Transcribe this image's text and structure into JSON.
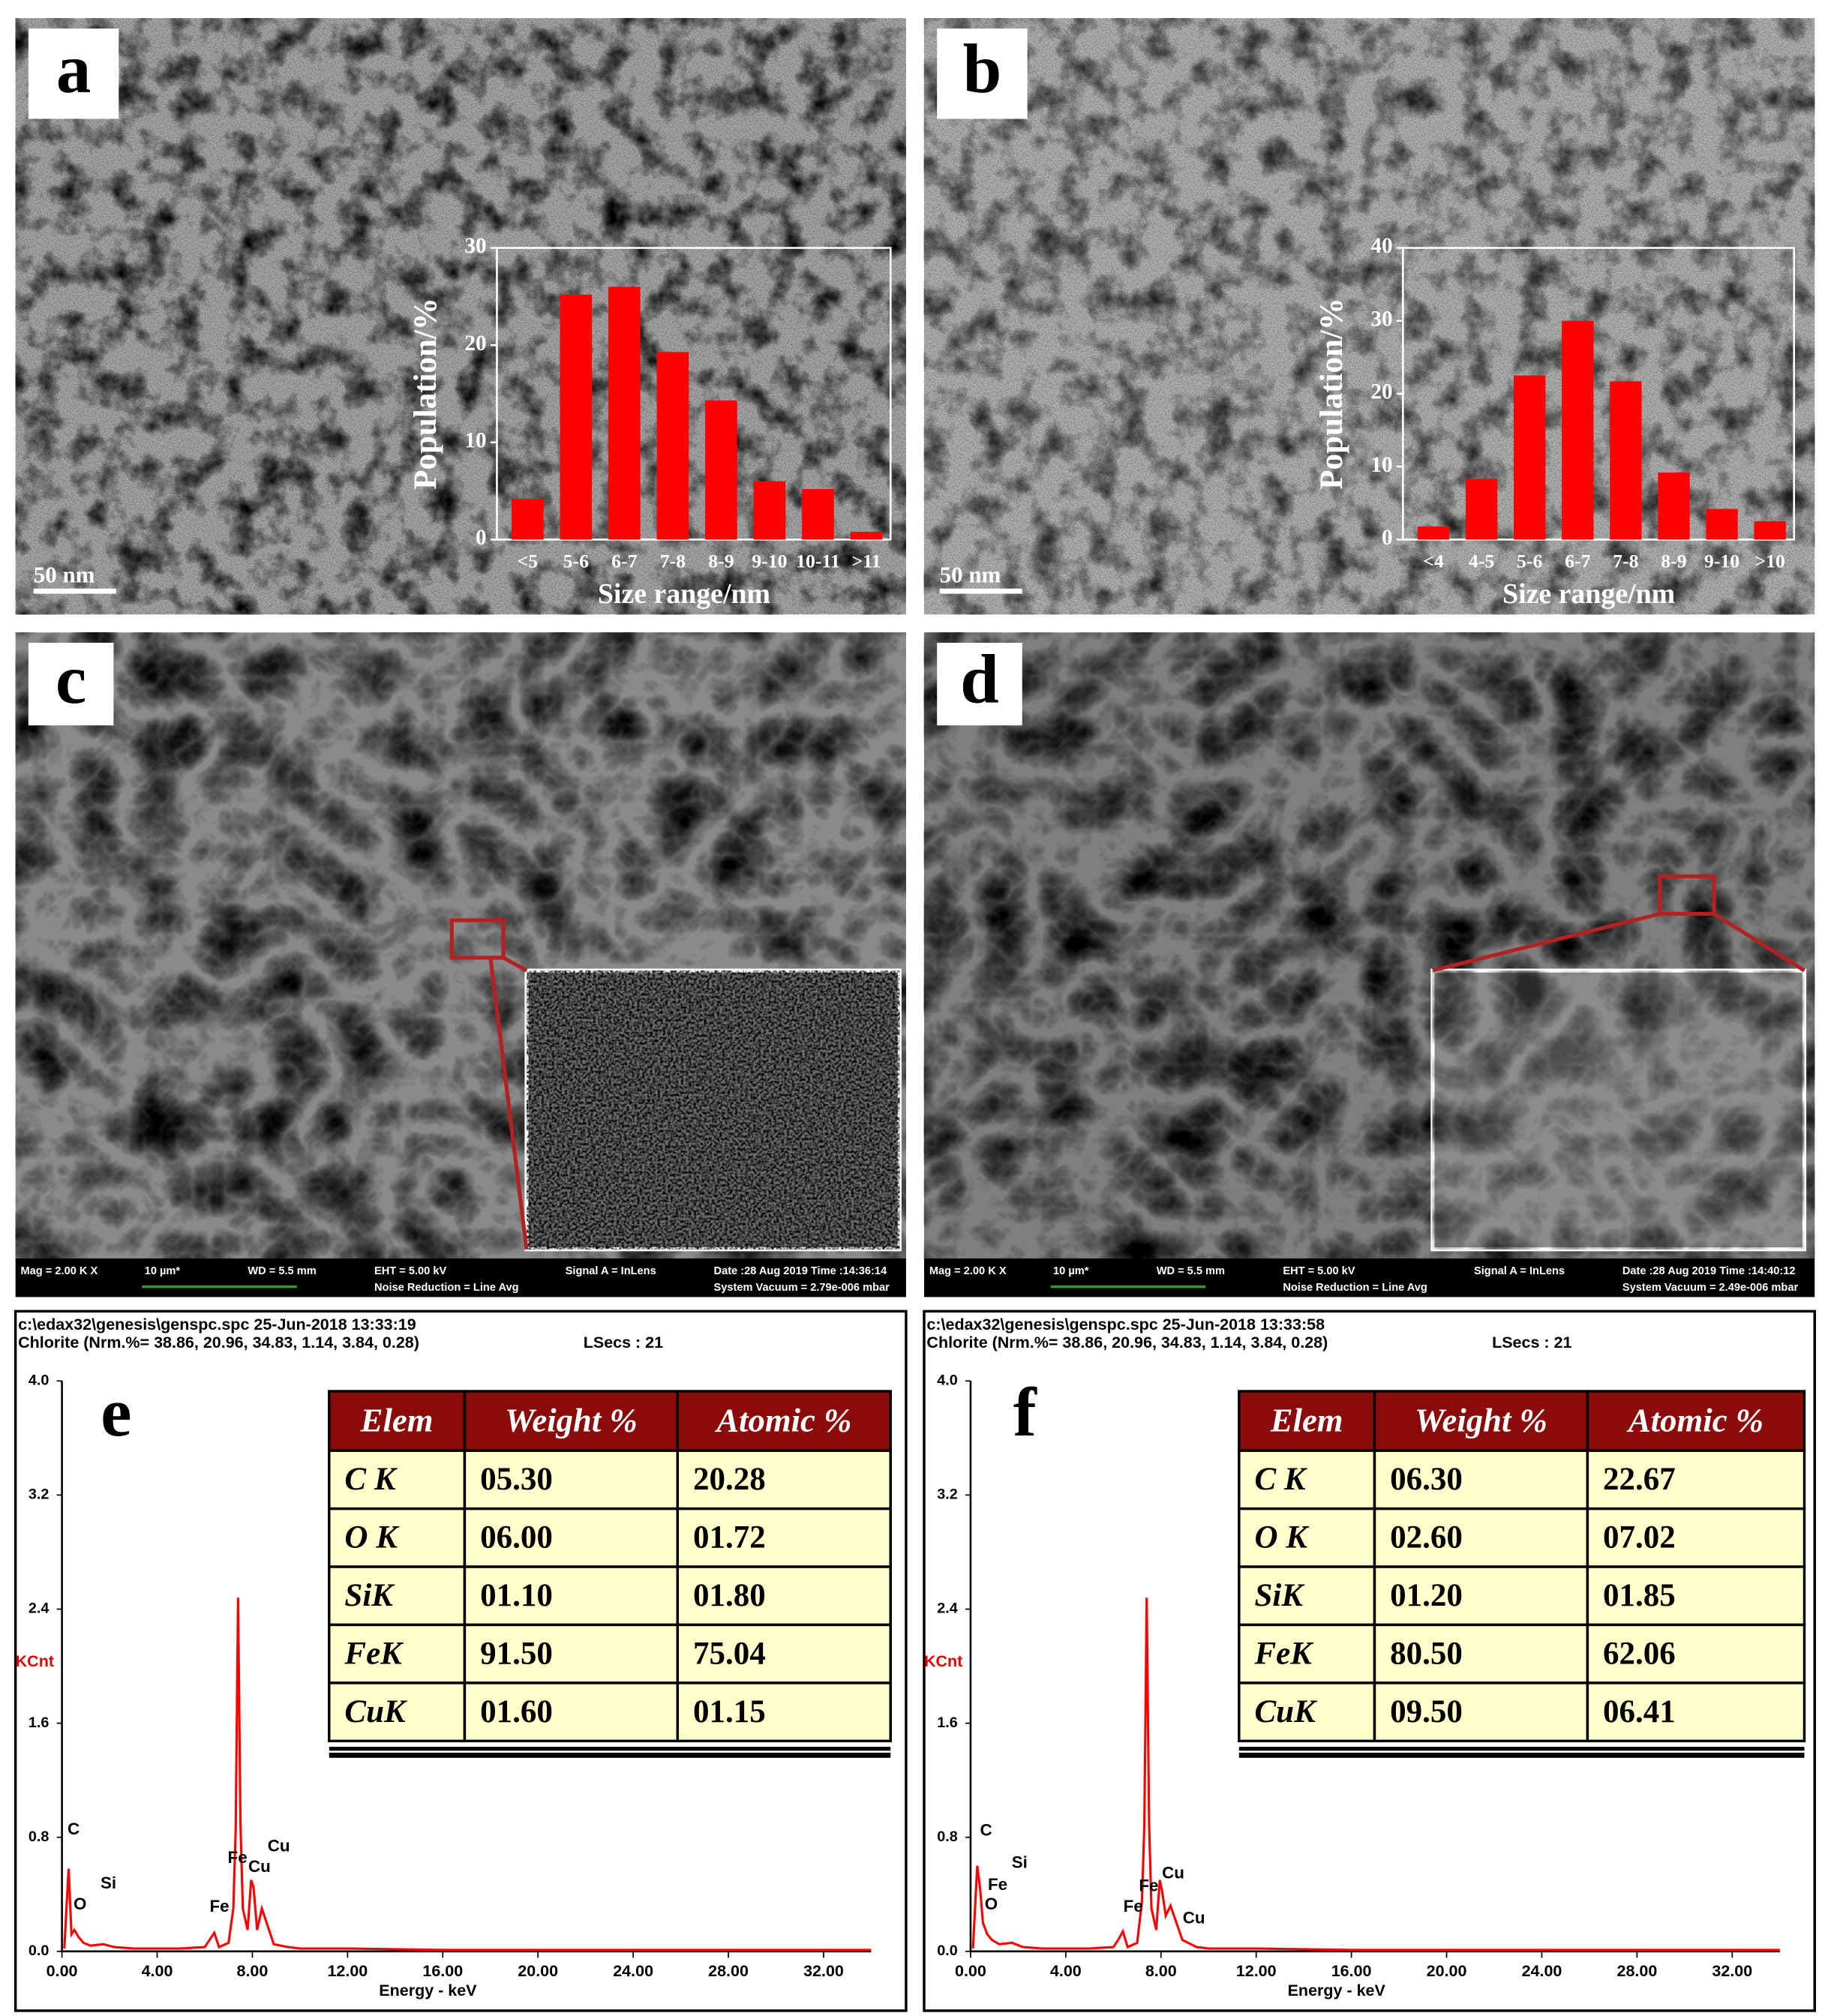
{
  "panels": [
    {
      "label": "a",
      "scale_bar": "50 nm"
    },
    {
      "label": "b",
      "scale_bar": "50 nm"
    },
    {
      "label": "c",
      "sem_info": [
        "Mag =  2.00 K X",
        "10 µm*",
        "WD =  5.5 mm",
        "EHT =  5.00 kV",
        "Noise Reduction = Line Avg",
        "Signal A = InLens",
        "Date :28 Aug 2019  Time :14:36:14",
        "System Vacuum = 2.79e-006 mbar"
      ]
    },
    {
      "label": "d",
      "sem_info": [
        "Mag =  2.00 K X",
        "10 µm*",
        "WD =  5.5 mm",
        "EHT =  5.00 kV",
        "Noise Reduction = Line Avg",
        "Signal A = InLens",
        "Date :28 Aug 2019  Time :14:40:12",
        "System Vacuum = 2.49e-006 mbar"
      ]
    },
    {
      "label": "e",
      "header": [
        "c:\\edax32\\genesis\\genspc.spc  25-Jun-2018 13:33:19",
        "Chlorite (Nrm.%= 38.86, 20.96, 34.83, 1.14, 3.84, 0.28)",
        "LSecs :  21"
      ],
      "table": {
        "columns": [
          "Elem",
          "Weight %",
          "Atomic %"
        ],
        "rows": [
          [
            "C K",
            "05.30",
            "20.28"
          ],
          [
            "O K",
            "06.00",
            "01.72"
          ],
          [
            "SiK",
            "01.10",
            "01.80"
          ],
          [
            "FeK",
            "91.50",
            "75.04"
          ],
          [
            "CuK",
            "01.60",
            "01.15"
          ]
        ]
      }
    },
    {
      "label": "f",
      "header": [
        "c:\\edax32\\genesis\\genspc.spc  25-Jun-2018 13:33:58",
        "Chlorite (Nrm.%= 38.86, 20.96, 34.83, 1.14, 3.84, 0.28)",
        "LSecs :  21"
      ],
      "table": {
        "columns": [
          "Elem",
          "Weight %",
          "Atomic %"
        ],
        "rows": [
          [
            "C K",
            "06.30",
            "22.67"
          ],
          [
            "O K",
            "02.60",
            "07.02"
          ],
          [
            "SiK",
            "01.20",
            "01.85"
          ],
          [
            "FeK",
            "80.50",
            "62.06"
          ],
          [
            "CuK",
            "09.50",
            "06.41"
          ]
        ]
      }
    }
  ],
  "chart_data": [
    {
      "type": "bar",
      "color": "#ff0000",
      "categories": [
        "<5",
        "5-6",
        "6-7",
        "7-8",
        "8-9",
        "9-10",
        "10-11",
        ">11"
      ],
      "values": [
        4.2,
        25.2,
        26,
        19.3,
        14.3,
        6,
        5.2,
        0.8
      ],
      "ylim": [
        0,
        30
      ],
      "yticks": [
        0,
        10,
        20,
        30
      ],
      "ylabel": "Population/%",
      "xlabel": "Size range/nm"
    },
    {
      "type": "bar",
      "color": "#ff0000",
      "categories": [
        "<4",
        "4-5",
        "5-6",
        "6-7",
        "7-8",
        "8-9",
        "9-10",
        ">10"
      ],
      "values": [
        1.8,
        8.3,
        22.5,
        30,
        21.7,
        9.2,
        4.2,
        2.5
      ],
      "ylim": [
        0,
        40
      ],
      "yticks": [
        0,
        10,
        20,
        30,
        40
      ],
      "ylabel": "Population/%",
      "xlabel": "Size range/nm"
    },
    {
      "type": "line",
      "color": "#ff0000",
      "x": [
        0.1,
        0.28,
        0.4,
        0.52,
        0.7,
        0.9,
        1.2,
        1.74,
        2.2,
        3,
        4,
        5,
        6,
        6.2,
        6.4,
        6.6,
        7,
        7.2,
        7.3,
        7.4,
        7.5,
        7.6,
        7.8,
        7.95,
        8.05,
        8.2,
        8.4,
        8.9,
        9.5,
        10,
        12,
        16,
        20,
        24,
        28,
        32,
        34
      ],
      "values": [
        0.02,
        0.58,
        0.12,
        0.15,
        0.1,
        0.06,
        0.04,
        0.05,
        0.03,
        0.02,
        0.02,
        0.02,
        0.03,
        0.08,
        0.13,
        0.03,
        0.06,
        0.3,
        0.85,
        2.48,
        0.9,
        0.3,
        0.15,
        0.5,
        0.45,
        0.15,
        0.3,
        0.05,
        0.03,
        0.02,
        0.02,
        0.01,
        0.01,
        0.01,
        0.01,
        0.01,
        0.01
      ],
      "xlim": [
        0,
        34
      ],
      "ylim": [
        0,
        4
      ],
      "xticks": [
        {
          "value": 0,
          "label": "0.00"
        },
        {
          "value": 4,
          "label": "4.00"
        },
        {
          "value": 8,
          "label": "8.00"
        },
        {
          "value": 12,
          "label": "12.00"
        },
        {
          "value": 16,
          "label": "16.00"
        },
        {
          "value": 20,
          "label": "20.00"
        },
        {
          "value": 24,
          "label": "24.00"
        },
        {
          "value": 28,
          "label": "28.00"
        },
        {
          "value": 32,
          "label": "32.00"
        }
      ],
      "yticks": [
        {
          "value": 0,
          "label": "0.0"
        },
        {
          "value": 0.8,
          "label": "0.8"
        },
        {
          "value": 1.6,
          "label": "1.6"
        },
        {
          "value": 2.4,
          "label": "2.4"
        },
        {
          "value": 3.2,
          "label": "3.2"
        },
        {
          "value": 4,
          "label": "4.0"
        }
      ],
      "ylabel": "KCnt",
      "xlabel": "Energy - keV",
      "annotations": [
        "C",
        "O",
        "Si",
        "Fe",
        "Fe",
        "Cu",
        "Cu"
      ]
    },
    {
      "type": "line",
      "color": "#ff0000",
      "x": [
        0.1,
        0.28,
        0.4,
        0.52,
        0.7,
        0.9,
        1.2,
        1.74,
        2.2,
        3,
        4,
        5,
        6,
        6.2,
        6.4,
        6.6,
        7,
        7.2,
        7.3,
        7.4,
        7.5,
        7.6,
        7.8,
        7.95,
        8.05,
        8.2,
        8.4,
        8.9,
        9.5,
        10,
        12,
        16,
        20,
        24,
        28,
        32,
        34
      ],
      "values": [
        0.02,
        0.6,
        0.44,
        0.2,
        0.12,
        0.08,
        0.05,
        0.06,
        0.03,
        0.02,
        0.02,
        0.02,
        0.03,
        0.08,
        0.14,
        0.03,
        0.06,
        0.35,
        0.88,
        2.48,
        0.9,
        0.3,
        0.15,
        0.5,
        0.42,
        0.25,
        0.32,
        0.08,
        0.03,
        0.02,
        0.02,
        0.01,
        0.01,
        0.01,
        0.01,
        0.01,
        0.01
      ],
      "xlim": [
        0,
        34
      ],
      "ylim": [
        0,
        4
      ],
      "xticks": [
        {
          "value": 0,
          "label": "0.00"
        },
        {
          "value": 4,
          "label": "4.00"
        },
        {
          "value": 8,
          "label": "8.00"
        },
        {
          "value": 12,
          "label": "12.00"
        },
        {
          "value": 16,
          "label": "16.00"
        },
        {
          "value": 20,
          "label": "20.00"
        },
        {
          "value": 24,
          "label": "24.00"
        },
        {
          "value": 28,
          "label": "28.00"
        },
        {
          "value": 32,
          "label": "32.00"
        }
      ],
      "yticks": [
        {
          "value": 0,
          "label": "0.0"
        },
        {
          "value": 0.8,
          "label": "0.8"
        },
        {
          "value": 1.6,
          "label": "1.6"
        },
        {
          "value": 2.4,
          "label": "2.4"
        },
        {
          "value": 3.2,
          "label": "3.2"
        },
        {
          "value": 4,
          "label": "4.0"
        }
      ],
      "ylabel": "KCnt",
      "xlabel": "Energy - keV",
      "annotations": [
        "C",
        "Si",
        "Fe",
        "O",
        "Fe",
        "Fe",
        "Cu",
        "Cu"
      ]
    }
  ]
}
